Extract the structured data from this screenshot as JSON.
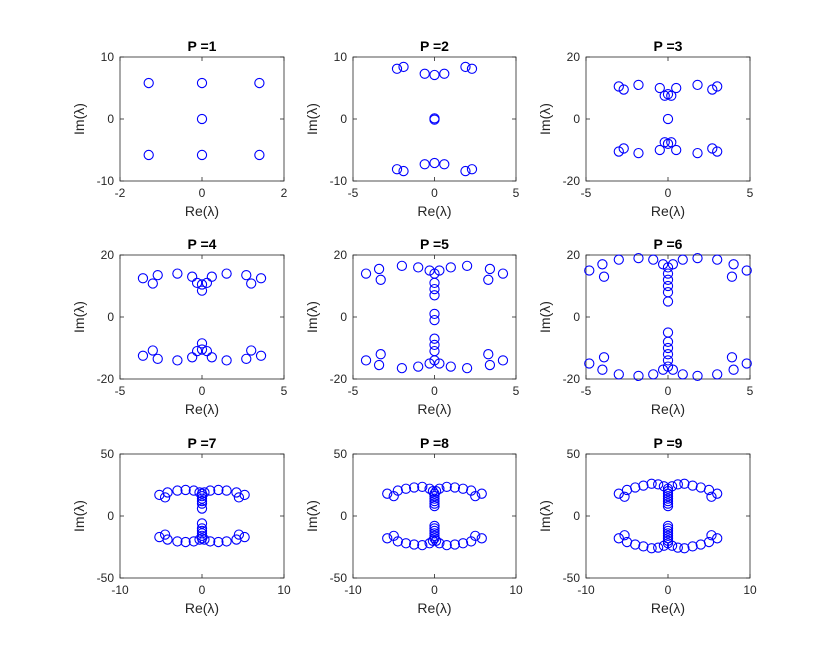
{
  "chart_data": [
    {
      "type": "scatter",
      "title": "P =1",
      "xlabel": "Re(λ)",
      "ylabel": "Im(λ)",
      "xlim": [
        -2,
        2
      ],
      "ylim": [
        -10,
        10
      ],
      "xticks": [
        "-2",
        "0",
        "2"
      ],
      "yticks": [
        "-10",
        "0",
        "10"
      ],
      "marker": "circle",
      "color": "#0000ff",
      "points": [
        [
          -1.3,
          5.8
        ],
        [
          0,
          5.8
        ],
        [
          1.4,
          5.8
        ],
        [
          0,
          0
        ],
        [
          -1.3,
          -5.8
        ],
        [
          0,
          -5.8
        ],
        [
          1.4,
          -5.8
        ]
      ]
    },
    {
      "type": "scatter",
      "title": "P =2",
      "xlabel": "Re(λ)",
      "ylabel": "Im(λ)",
      "xlim": [
        -5,
        5
      ],
      "ylim": [
        -10,
        10
      ],
      "xticks": [
        "-5",
        "0",
        "5"
      ],
      "yticks": [
        "-10",
        "0",
        "10"
      ],
      "marker": "circle",
      "color": "#0000ff",
      "points": [
        [
          -2.3,
          8.1
        ],
        [
          -1.9,
          8.4
        ],
        [
          -0.6,
          7.3
        ],
        [
          0,
          7.1
        ],
        [
          0.6,
          7.3
        ],
        [
          1.9,
          8.4
        ],
        [
          2.3,
          8.1
        ],
        [
          0,
          0.1
        ],
        [
          0,
          -0.1
        ],
        [
          -2.3,
          -8.1
        ],
        [
          -1.9,
          -8.4
        ],
        [
          -0.6,
          -7.3
        ],
        [
          0,
          -7.1
        ],
        [
          0.6,
          -7.3
        ],
        [
          1.9,
          -8.4
        ],
        [
          2.3,
          -8.1
        ]
      ]
    },
    {
      "type": "scatter",
      "title": "P =3",
      "xlabel": "Re(λ)",
      "ylabel": "Im(λ)",
      "xlim": [
        -5,
        5
      ],
      "ylim": [
        -20,
        20
      ],
      "xticks": [
        "-5",
        "0",
        "5"
      ],
      "yticks": [
        "-20",
        "0",
        "20"
      ],
      "marker": "circle",
      "color": "#0000ff",
      "points": [
        [
          -3.0,
          10.5
        ],
        [
          -2.7,
          9.5
        ],
        [
          -1.8,
          11
        ],
        [
          -0.5,
          10
        ],
        [
          0,
          8
        ],
        [
          -0.2,
          7.5
        ],
        [
          0.2,
          7.5
        ],
        [
          0.5,
          10
        ],
        [
          1.8,
          11
        ],
        [
          2.7,
          9.5
        ],
        [
          3.0,
          10.5
        ],
        [
          0,
          0
        ],
        [
          -3.0,
          -10.5
        ],
        [
          -2.7,
          -9.5
        ],
        [
          -1.8,
          -11
        ],
        [
          -0.5,
          -10
        ],
        [
          0,
          -8
        ],
        [
          -0.2,
          -7.5
        ],
        [
          0.2,
          -7.5
        ],
        [
          0.5,
          -10
        ],
        [
          1.8,
          -11
        ],
        [
          2.7,
          -9.5
        ],
        [
          3.0,
          -10.5
        ]
      ]
    },
    {
      "type": "scatter",
      "title": "P =4",
      "xlabel": "Re(λ)",
      "ylabel": "Im(λ)",
      "xlim": [
        -5,
        5
      ],
      "ylim": [
        -20,
        20
      ],
      "xticks": [
        "-5",
        "0",
        "5"
      ],
      "yticks": [
        "-20",
        "0",
        "20"
      ],
      "marker": "circle",
      "color": "#0000ff",
      "points": [
        [
          -3.6,
          12.5
        ],
        [
          -3.0,
          10.8
        ],
        [
          -2.7,
          13.5
        ],
        [
          -1.5,
          14
        ],
        [
          -0.6,
          13
        ],
        [
          -0.3,
          11
        ],
        [
          0,
          10.5
        ],
        [
          0.3,
          11
        ],
        [
          0,
          8.5
        ],
        [
          0.6,
          13
        ],
        [
          1.5,
          14
        ],
        [
          2.7,
          13.5
        ],
        [
          3.0,
          10.8
        ],
        [
          3.6,
          12.5
        ],
        [
          -3.6,
          -12.5
        ],
        [
          -3.0,
          -10.8
        ],
        [
          -2.7,
          -13.5
        ],
        [
          -1.5,
          -14
        ],
        [
          -0.6,
          -13
        ],
        [
          -0.3,
          -11
        ],
        [
          0,
          -10.5
        ],
        [
          0.3,
          -11
        ],
        [
          0,
          -8.5
        ],
        [
          0.6,
          -13
        ],
        [
          1.5,
          -14
        ],
        [
          2.7,
          -13.5
        ],
        [
          3.0,
          -10.8
        ],
        [
          3.6,
          -12.5
        ]
      ]
    },
    {
      "type": "scatter",
      "title": "P =5",
      "xlabel": "Re(λ)",
      "ylabel": "Im(λ)",
      "xlim": [
        -5,
        5
      ],
      "ylim": [
        -20,
        20
      ],
      "xticks": [
        "-5",
        "0",
        "5"
      ],
      "yticks": [
        "-20",
        "0",
        "20"
      ],
      "marker": "circle",
      "color": "#0000ff",
      "points": [
        [
          -4.2,
          14
        ],
        [
          -3.4,
          15.5
        ],
        [
          -3.3,
          12
        ],
        [
          -2.0,
          16.5
        ],
        [
          -1.0,
          16
        ],
        [
          -0.3,
          15
        ],
        [
          0,
          14
        ],
        [
          0.3,
          15
        ],
        [
          1.0,
          16
        ],
        [
          2.0,
          16.5
        ],
        [
          3.3,
          12
        ],
        [
          3.4,
          15.5
        ],
        [
          4.2,
          14
        ],
        [
          0,
          11
        ],
        [
          0,
          9
        ],
        [
          0,
          7
        ],
        [
          0,
          1
        ],
        [
          0,
          -1
        ],
        [
          0,
          -7
        ],
        [
          0,
          -9
        ],
        [
          0,
          -11
        ],
        [
          -4.2,
          -14
        ],
        [
          -3.4,
          -15.5
        ],
        [
          -3.3,
          -12
        ],
        [
          -2.0,
          -16.5
        ],
        [
          -1.0,
          -16
        ],
        [
          -0.3,
          -15
        ],
        [
          0,
          -14
        ],
        [
          0.3,
          -15
        ],
        [
          1.0,
          -16
        ],
        [
          2.0,
          -16.5
        ],
        [
          3.3,
          -12
        ],
        [
          3.4,
          -15.5
        ],
        [
          4.2,
          -14
        ]
      ]
    },
    {
      "type": "scatter",
      "title": "P =6",
      "xlabel": "Re(λ)",
      "ylabel": "Im(λ)",
      "xlim": [
        -5,
        5
      ],
      "ylim": [
        -20,
        20
      ],
      "xticks": [
        "-5",
        "0",
        "5"
      ],
      "yticks": [
        "-20",
        "0",
        "20"
      ],
      "marker": "circle",
      "color": "#0000ff",
      "points": [
        [
          -4.8,
          15
        ],
        [
          -4.0,
          17
        ],
        [
          -3.9,
          13
        ],
        [
          -3.0,
          18.5
        ],
        [
          -1.8,
          19
        ],
        [
          -0.9,
          18.5
        ],
        [
          -0.3,
          17
        ],
        [
          0,
          16
        ],
        [
          0.3,
          17
        ],
        [
          0.9,
          18.5
        ],
        [
          1.8,
          19
        ],
        [
          3.0,
          18.5
        ],
        [
          3.9,
          13
        ],
        [
          4.0,
          17
        ],
        [
          4.8,
          15
        ],
        [
          0,
          14
        ],
        [
          0,
          12
        ],
        [
          0,
          10
        ],
        [
          0,
          8
        ],
        [
          0,
          5
        ],
        [
          0,
          -5
        ],
        [
          0,
          -8
        ],
        [
          0,
          -10
        ],
        [
          0,
          -12
        ],
        [
          0,
          -14
        ],
        [
          -4.8,
          -15
        ],
        [
          -4.0,
          -17
        ],
        [
          -3.9,
          -13
        ],
        [
          -3.0,
          -18.5
        ],
        [
          -1.8,
          -19
        ],
        [
          -0.9,
          -18.5
        ],
        [
          -0.3,
          -17
        ],
        [
          0,
          -16
        ],
        [
          0.3,
          -17
        ],
        [
          0.9,
          -18.5
        ],
        [
          1.8,
          -19
        ],
        [
          3.0,
          -18.5
        ],
        [
          3.9,
          -13
        ],
        [
          4.0,
          -17
        ],
        [
          4.8,
          -15
        ]
      ]
    },
    {
      "type": "scatter",
      "title": "P =7",
      "xlabel": "Re(λ)",
      "ylabel": "Im(λ)",
      "xlim": [
        -10,
        10
      ],
      "ylim": [
        -50,
        50
      ],
      "xticks": [
        "-10",
        "0",
        "10"
      ],
      "yticks": [
        "-50",
        "0",
        "50"
      ],
      "marker": "circle",
      "color": "#0000ff",
      "points": [
        [
          -5.2,
          17
        ],
        [
          -4.5,
          15
        ],
        [
          -4.2,
          19
        ],
        [
          -3.0,
          20.5
        ],
        [
          -2.0,
          21
        ],
        [
          -1.0,
          20.5
        ],
        [
          -0.3,
          19
        ],
        [
          0,
          18
        ],
        [
          0.3,
          19
        ],
        [
          1.0,
          20.5
        ],
        [
          2.0,
          21
        ],
        [
          3.0,
          20.5
        ],
        [
          4.2,
          19
        ],
        [
          4.5,
          15
        ],
        [
          5.2,
          17
        ],
        [
          0,
          16
        ],
        [
          0,
          14
        ],
        [
          0,
          12
        ],
        [
          0,
          10
        ],
        [
          0,
          6
        ],
        [
          0,
          -6
        ],
        [
          0,
          -10
        ],
        [
          0,
          -12
        ],
        [
          0,
          -14
        ],
        [
          0,
          -16
        ],
        [
          -5.2,
          -17
        ],
        [
          -4.5,
          -15
        ],
        [
          -4.2,
          -19
        ],
        [
          -3.0,
          -20.5
        ],
        [
          -2.0,
          -21
        ],
        [
          -1.0,
          -20.5
        ],
        [
          -0.3,
          -19
        ],
        [
          0,
          -18
        ],
        [
          0.3,
          -19
        ],
        [
          1.0,
          -20.5
        ],
        [
          2.0,
          -21
        ],
        [
          3.0,
          -20.5
        ],
        [
          4.2,
          -19
        ],
        [
          4.5,
          -15
        ],
        [
          5.2,
          -17
        ]
      ]
    },
    {
      "type": "scatter",
      "title": "P =8",
      "xlabel": "Re(λ)",
      "ylabel": "Im(λ)",
      "xlim": [
        -10,
        10
      ],
      "ylim": [
        -50,
        50
      ],
      "xticks": [
        "-10",
        "0",
        "10"
      ],
      "yticks": [
        "-50",
        "0",
        "50"
      ],
      "marker": "circle",
      "color": "#0000ff",
      "points": [
        [
          -5.8,
          18
        ],
        [
          -5.0,
          16
        ],
        [
          -4.5,
          20.5
        ],
        [
          -3.5,
          22
        ],
        [
          -2.5,
          23
        ],
        [
          -1.5,
          23.5
        ],
        [
          -0.6,
          22
        ],
        [
          -0.2,
          20
        ],
        [
          0.2,
          20
        ],
        [
          0.6,
          22
        ],
        [
          1.5,
          23.5
        ],
        [
          2.5,
          23
        ],
        [
          3.5,
          22
        ],
        [
          4.5,
          20.5
        ],
        [
          5.0,
          16
        ],
        [
          5.8,
          18
        ],
        [
          0,
          18
        ],
        [
          0,
          16
        ],
        [
          0,
          14
        ],
        [
          0,
          12
        ],
        [
          0,
          10
        ],
        [
          0,
          8
        ],
        [
          0,
          -8
        ],
        [
          0,
          -10
        ],
        [
          0,
          -12
        ],
        [
          0,
          -14
        ],
        [
          0,
          -16
        ],
        [
          0,
          -18
        ],
        [
          -5.8,
          -18
        ],
        [
          -5.0,
          -16
        ],
        [
          -4.5,
          -20.5
        ],
        [
          -3.5,
          -22
        ],
        [
          -2.5,
          -23
        ],
        [
          -1.5,
          -23.5
        ],
        [
          -0.6,
          -22
        ],
        [
          -0.2,
          -20
        ],
        [
          0.2,
          -20
        ],
        [
          0.6,
          -22
        ],
        [
          1.5,
          -23.5
        ],
        [
          2.5,
          -23
        ],
        [
          3.5,
          -22
        ],
        [
          4.5,
          -20.5
        ],
        [
          5.0,
          -16
        ],
        [
          5.8,
          -18
        ]
      ]
    },
    {
      "type": "scatter",
      "title": "P =9",
      "xlabel": "Re(λ)",
      "ylabel": "Im(λ)",
      "xlim": [
        -10,
        10
      ],
      "ylim": [
        -50,
        50
      ],
      "xticks": [
        "-10",
        "0",
        "10"
      ],
      "yticks": [
        "-50",
        "0",
        "50"
      ],
      "marker": "circle",
      "color": "#0000ff",
      "points": [
        [
          -6.0,
          18
        ],
        [
          -5.3,
          15.5
        ],
        [
          -5.0,
          21
        ],
        [
          -4.0,
          23
        ],
        [
          -3.0,
          24.5
        ],
        [
          -2.0,
          26
        ],
        [
          -1.2,
          25.5
        ],
        [
          -0.5,
          24
        ],
        [
          0,
          22
        ],
        [
          0.5,
          24
        ],
        [
          1.2,
          25.5
        ],
        [
          2.0,
          26
        ],
        [
          3.0,
          24.5
        ],
        [
          4.0,
          23
        ],
        [
          5.0,
          21
        ],
        [
          5.3,
          15.5
        ],
        [
          6.0,
          18
        ],
        [
          0,
          20
        ],
        [
          0,
          18
        ],
        [
          0,
          16
        ],
        [
          0,
          14
        ],
        [
          0,
          12
        ],
        [
          0,
          10
        ],
        [
          0,
          8
        ],
        [
          0,
          -8
        ],
        [
          0,
          -10
        ],
        [
          0,
          -12
        ],
        [
          0,
          -14
        ],
        [
          0,
          -16
        ],
        [
          0,
          -18
        ],
        [
          0,
          -20
        ],
        [
          -6.0,
          -18
        ],
        [
          -5.3,
          -15.5
        ],
        [
          -5.0,
          -21
        ],
        [
          -4.0,
          -23
        ],
        [
          -3.0,
          -24.5
        ],
        [
          -2.0,
          -26
        ],
        [
          -1.2,
          -25.5
        ],
        [
          -0.5,
          -24
        ],
        [
          0,
          -22
        ],
        [
          0.5,
          -24
        ],
        [
          1.2,
          -25.5
        ],
        [
          2.0,
          -26
        ],
        [
          3.0,
          -24.5
        ],
        [
          4.0,
          -23
        ],
        [
          5.0,
          -21
        ],
        [
          5.3,
          -15.5
        ],
        [
          6.0,
          -18
        ]
      ]
    }
  ]
}
